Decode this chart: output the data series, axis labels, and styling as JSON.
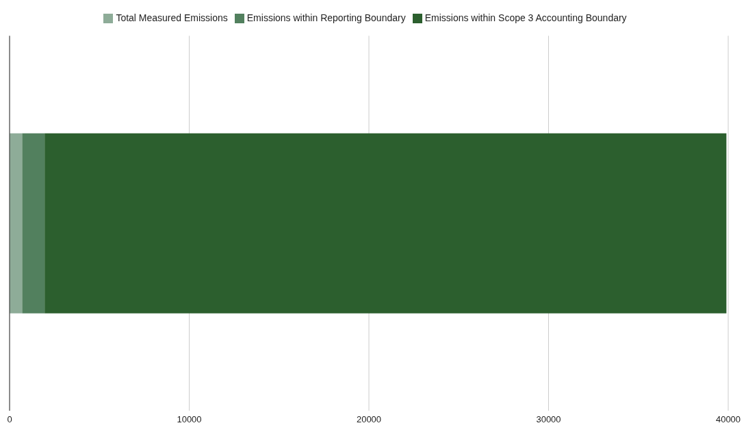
{
  "chart_data": {
    "type": "bar",
    "orientation": "horizontal",
    "stacked": true,
    "categories": [
      null
    ],
    "series": [
      {
        "name": "Total Measured Emissions",
        "color": "#8eac98",
        "values": [
          700
        ]
      },
      {
        "name": "Emissions within Reporting Boundary",
        "color": "#52805e",
        "values": [
          1250
        ]
      },
      {
        "name": "Emissions within Scope 3 Accounting Boundary",
        "color": "#2c5f2e",
        "values": [
          37950
        ]
      }
    ],
    "xlim": [
      0,
      40000
    ],
    "xticks": [
      0,
      10000,
      20000,
      30000,
      40000
    ],
    "grid": "x",
    "legend": "top"
  }
}
